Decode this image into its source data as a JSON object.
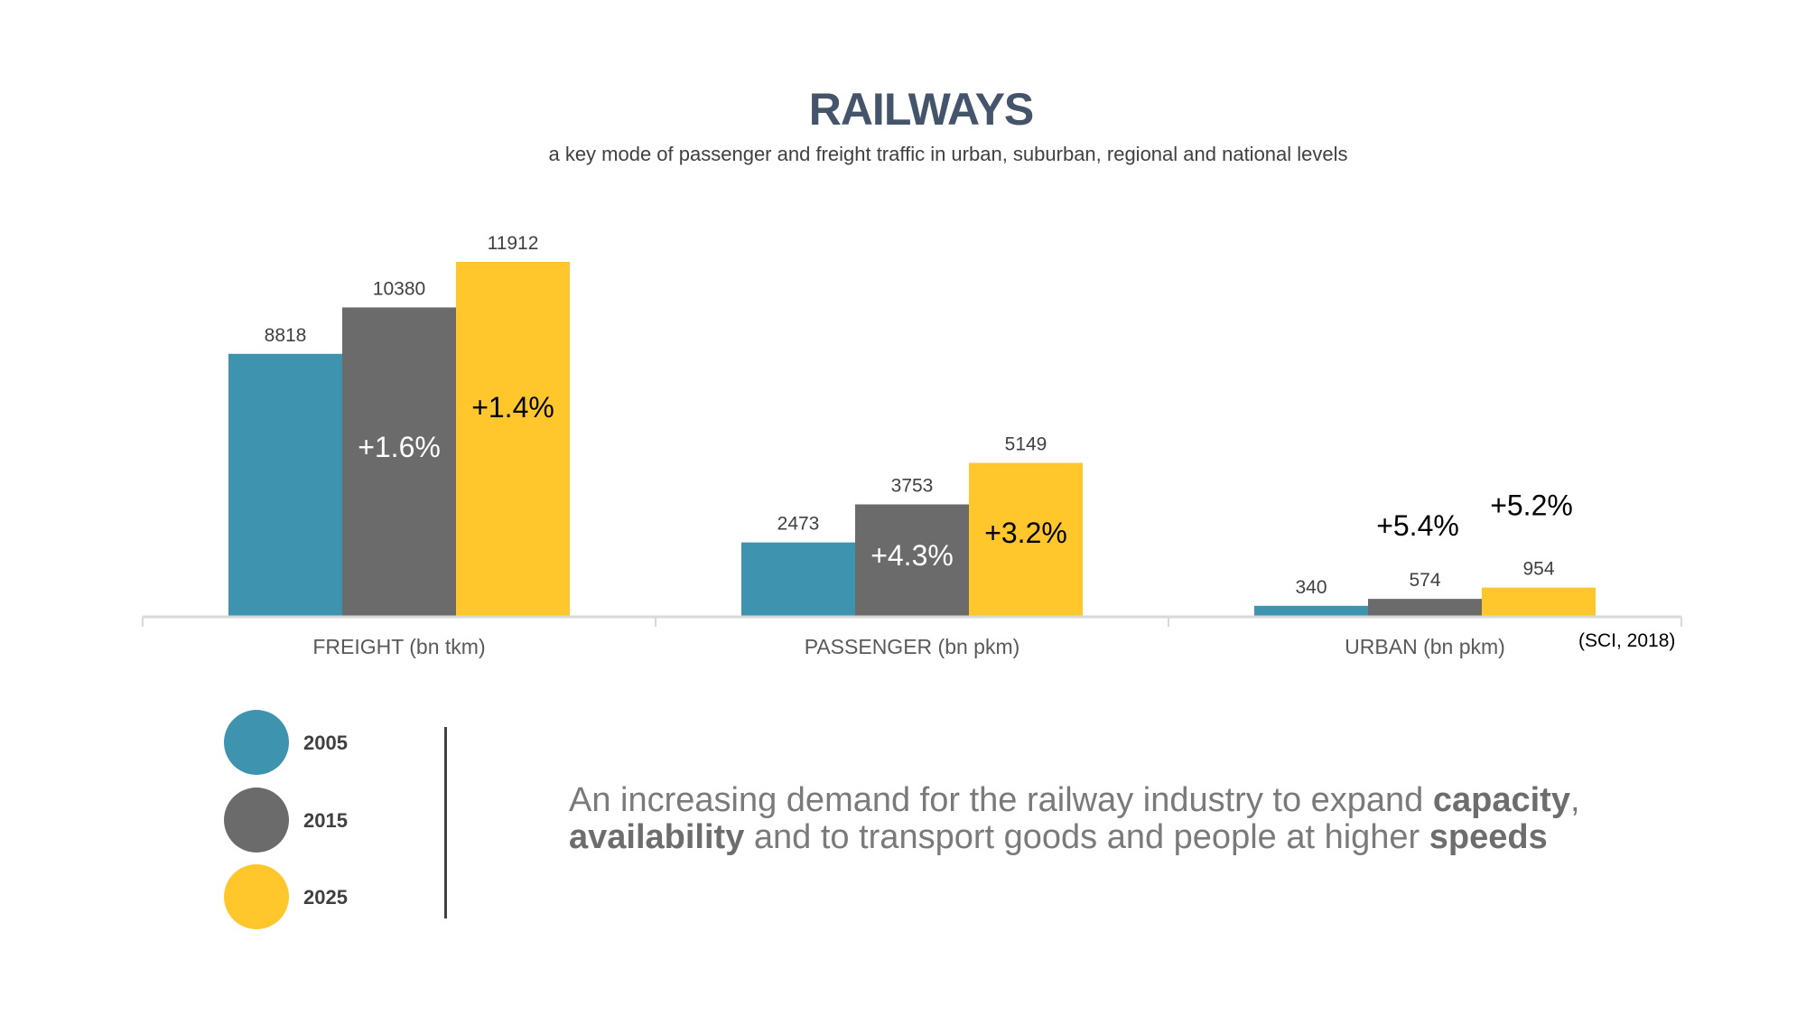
{
  "header": {
    "title": "RAILWAYS",
    "subtitle": "a key mode of passenger and freight traffic in urban, suburban, regional and national levels"
  },
  "colors": {
    "2005": "#3E94AE",
    "2015": "#6B6B6B",
    "2025": "#FFC72C",
    "axis": "#D9D9D9",
    "title": "#44546A"
  },
  "chart_data": {
    "type": "bar",
    "title": "RAILWAYS",
    "subtitle": "a key mode of passenger and freight traffic in urban, suburban, regional and national levels",
    "categories": [
      "FREIGHT (bn tkm)",
      "PASSENGER (bn pkm)",
      "URBAN (bn pkm)"
    ],
    "series": [
      {
        "name": "2005",
        "values": [
          8818,
          2473,
          340
        ]
      },
      {
        "name": "2015",
        "values": [
          10380,
          3753,
          574
        ]
      },
      {
        "name": "2025",
        "values": [
          11912,
          5149,
          954
        ]
      }
    ],
    "growth_labels": {
      "2015": [
        "+1.6%",
        "+4.3%",
        "+5.4%"
      ],
      "2025": [
        "+1.4%",
        "+3.2%",
        "+5.2%"
      ]
    },
    "ylim": [
      0,
      12500
    ],
    "grid": false,
    "legend_position": "bottom-left"
  },
  "legend": [
    {
      "label": "2005",
      "color": "#3E94AE"
    },
    {
      "label": "2015",
      "color": "#6B6B6B"
    },
    {
      "label": "2025",
      "color": "#FFC72C"
    }
  ],
  "source": "(SCI, 2018)",
  "message": {
    "p1": "An increasing demand for the railway industry to expand ",
    "b1": "capacity",
    "p2": ",",
    "b2": "availability",
    "p3": " and to transport goods and people at higher ",
    "b3": "speeds"
  }
}
